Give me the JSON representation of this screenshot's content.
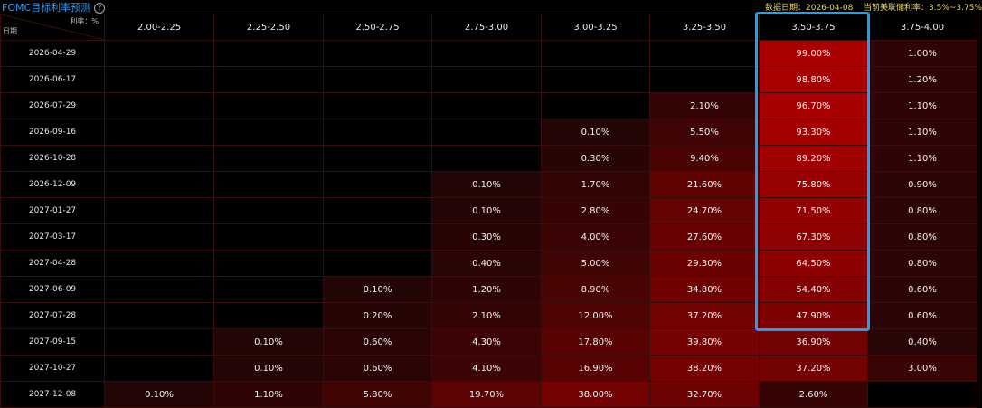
{
  "header": {
    "title": "FOMC目标利率预测",
    "help_icon": "question-circle-icon",
    "data_date": "数据日期：2026-04-08",
    "current_rate": "当前美联储利率：3.5%~3.75%"
  },
  "table": {
    "corner_rate_label": "利率：%",
    "corner_date_label": "日期",
    "columns": [
      "2.00-2.25",
      "2.25-2.50",
      "2.50-2.75",
      "2.75-3.00",
      "3.00-3.25",
      "3.25-3.50",
      "3.50-3.75",
      "3.75-4.00"
    ],
    "highlight_column": "3.50-3.75",
    "rows": [
      {
        "date": "2026-04-29",
        "cells": [
          "",
          "",
          "",
          "",
          "",
          "",
          "99.00%",
          "1.00%"
        ]
      },
      {
        "date": "2026-06-17",
        "cells": [
          "",
          "",
          "",
          "",
          "",
          "",
          "98.80%",
          "1.20%"
        ]
      },
      {
        "date": "2026-07-29",
        "cells": [
          "",
          "",
          "",
          "",
          "",
          "2.10%",
          "96.70%",
          "1.10%"
        ]
      },
      {
        "date": "2026-09-16",
        "cells": [
          "",
          "",
          "",
          "",
          "0.10%",
          "5.50%",
          "93.30%",
          "1.10%"
        ]
      },
      {
        "date": "2026-10-28",
        "cells": [
          "",
          "",
          "",
          "",
          "0.30%",
          "9.40%",
          "89.20%",
          "1.10%"
        ]
      },
      {
        "date": "2026-12-09",
        "cells": [
          "",
          "",
          "",
          "0.10%",
          "1.70%",
          "21.60%",
          "75.80%",
          "0.90%"
        ]
      },
      {
        "date": "2027-01-27",
        "cells": [
          "",
          "",
          "",
          "0.10%",
          "2.80%",
          "24.70%",
          "71.50%",
          "0.80%"
        ]
      },
      {
        "date": "2027-03-17",
        "cells": [
          "",
          "",
          "",
          "0.30%",
          "4.00%",
          "27.60%",
          "67.30%",
          "0.80%"
        ]
      },
      {
        "date": "2027-04-28",
        "cells": [
          "",
          "",
          "",
          "0.40%",
          "5.00%",
          "29.30%",
          "64.50%",
          "0.80%"
        ]
      },
      {
        "date": "2027-06-09",
        "cells": [
          "",
          "",
          "0.10%",
          "1.20%",
          "8.90%",
          "34.80%",
          "54.40%",
          "0.60%"
        ]
      },
      {
        "date": "2027-07-28",
        "cells": [
          "",
          "",
          "0.20%",
          "2.10%",
          "12.00%",
          "37.20%",
          "47.90%",
          "0.60%"
        ]
      },
      {
        "date": "2027-09-15",
        "cells": [
          "",
          "0.10%",
          "0.60%",
          "4.30%",
          "17.80%",
          "39.80%",
          "36.90%",
          "0.40%"
        ]
      },
      {
        "date": "2027-10-27",
        "cells": [
          "",
          "0.10%",
          "0.60%",
          "4.10%",
          "16.90%",
          "38.20%",
          "37.20%",
          "3.00%"
        ]
      },
      {
        "date": "2027-12-08",
        "cells": [
          "0.10%",
          "1.10%",
          "5.80%",
          "19.70%",
          "38.00%",
          "32.70%",
          "2.60%",
          ""
        ]
      }
    ]
  },
  "colors": {
    "title": "#2f9cf0",
    "meta": "#e8d36a",
    "highlight_border": "#1ea0ea",
    "heat_low": "#200505",
    "heat_high": "#a80000"
  }
}
